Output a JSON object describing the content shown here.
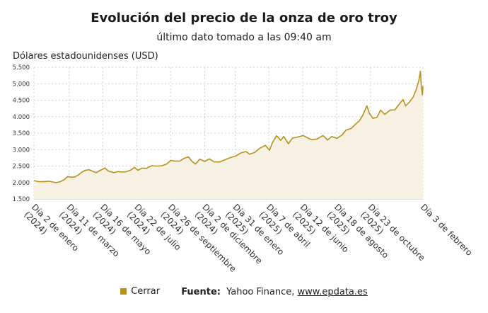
{
  "chart_data": {
    "type": "area",
    "title": "Evolución del precio de la onza de oro troy",
    "subtitle": "último dato tomado a las 09:40 am",
    "ylabel": "Dólares estadounidenses (USD)",
    "xlabel": "",
    "ylim": [
      1500,
      5500
    ],
    "yticks": [
      "1.500",
      "2.000",
      "2.500",
      "3.000",
      "3.500",
      "4.000",
      "4.500",
      "5.000",
      "5.500"
    ],
    "ytick_values": [
      1500,
      2000,
      2500,
      3000,
      3500,
      4000,
      4500,
      5000,
      5500
    ],
    "xlim": [
      "2024-01-02",
      "2026-02-03"
    ],
    "xticks": [
      {
        "date": "2024-01-02",
        "label": "Día 2 de enero (2024)"
      },
      {
        "date": "2024-03-11",
        "label": "Día 11 de marzo (2024)"
      },
      {
        "date": "2024-05-16",
        "label": "Día 16 de mayo (2024)"
      },
      {
        "date": "2024-07-22",
        "label": "Día 22 de julio (2024)"
      },
      {
        "date": "2024-09-26",
        "label": "Día 26 de septiembre (2024)"
      },
      {
        "date": "2024-12-02",
        "label": "Día 2 de diciembre (2024)"
      },
      {
        "date": "2025-01-31",
        "label": "Día 31 de enero (2025)"
      },
      {
        "date": "2025-04-07",
        "label": "Día 7 de abril (2025)"
      },
      {
        "date": "2025-06-12",
        "label": "Día 12 de junio (2025)"
      },
      {
        "date": "2025-08-18",
        "label": "Día 18 de agosto (2025)"
      },
      {
        "date": "2025-10-23",
        "label": "Día 23 de octubre (2025)"
      },
      {
        "date": "2026-02-03",
        "label": "Día 3 de febrero"
      }
    ],
    "grid": true,
    "legend_position": "bottom",
    "line_color": "#b8901c",
    "fill_color": "#f7f1e4",
    "series": [
      {
        "name": "Cerrar",
        "points": [
          [
            "2024-01-02",
            2060
          ],
          [
            "2024-01-10",
            2030
          ],
          [
            "2024-01-20",
            2025
          ],
          [
            "2024-02-01",
            2040
          ],
          [
            "2024-02-14",
            1995
          ],
          [
            "2024-02-22",
            2025
          ],
          [
            "2024-03-01",
            2080
          ],
          [
            "2024-03-08",
            2180
          ],
          [
            "2024-03-15",
            2160
          ],
          [
            "2024-03-22",
            2170
          ],
          [
            "2024-03-29",
            2230
          ],
          [
            "2024-04-05",
            2320
          ],
          [
            "2024-04-12",
            2370
          ],
          [
            "2024-04-19",
            2390
          ],
          [
            "2024-04-26",
            2340
          ],
          [
            "2024-05-03",
            2300
          ],
          [
            "2024-05-10",
            2360
          ],
          [
            "2024-05-20",
            2440
          ],
          [
            "2024-05-27",
            2350
          ],
          [
            "2024-06-07",
            2300
          ],
          [
            "2024-06-14",
            2330
          ],
          [
            "2024-06-24",
            2320
          ],
          [
            "2024-07-01",
            2330
          ],
          [
            "2024-07-10",
            2380
          ],
          [
            "2024-07-17",
            2460
          ],
          [
            "2024-07-24",
            2370
          ],
          [
            "2024-08-01",
            2440
          ],
          [
            "2024-08-09",
            2430
          ],
          [
            "2024-08-20",
            2510
          ],
          [
            "2024-08-30",
            2500
          ],
          [
            "2024-09-09",
            2510
          ],
          [
            "2024-09-18",
            2560
          ],
          [
            "2024-09-26",
            2670
          ],
          [
            "2024-10-04",
            2650
          ],
          [
            "2024-10-14",
            2650
          ],
          [
            "2024-10-22",
            2730
          ],
          [
            "2024-10-31",
            2780
          ],
          [
            "2024-11-06",
            2660
          ],
          [
            "2024-11-14",
            2560
          ],
          [
            "2024-11-22",
            2710
          ],
          [
            "2024-12-02",
            2640
          ],
          [
            "2024-12-11",
            2720
          ],
          [
            "2024-12-20",
            2630
          ],
          [
            "2024-12-31",
            2625
          ],
          [
            "2025-01-10",
            2690
          ],
          [
            "2025-01-22",
            2760
          ],
          [
            "2025-01-31",
            2800
          ],
          [
            "2025-02-11",
            2900
          ],
          [
            "2025-02-21",
            2940
          ],
          [
            "2025-02-28",
            2860
          ],
          [
            "2025-03-10",
            2915
          ],
          [
            "2025-03-20",
            3040
          ],
          [
            "2025-03-31",
            3130
          ],
          [
            "2025-04-08",
            2980
          ],
          [
            "2025-04-14",
            3220
          ],
          [
            "2025-04-22",
            3420
          ],
          [
            "2025-04-30",
            3280
          ],
          [
            "2025-05-06",
            3400
          ],
          [
            "2025-05-15",
            3180
          ],
          [
            "2025-05-23",
            3350
          ],
          [
            "2025-06-02",
            3380
          ],
          [
            "2025-06-13",
            3430
          ],
          [
            "2025-06-20",
            3370
          ],
          [
            "2025-06-30",
            3300
          ],
          [
            "2025-07-10",
            3320
          ],
          [
            "2025-07-22",
            3430
          ],
          [
            "2025-07-31",
            3290
          ],
          [
            "2025-08-08",
            3400
          ],
          [
            "2025-08-18",
            3340
          ],
          [
            "2025-08-29",
            3450
          ],
          [
            "2025-09-05",
            3590
          ],
          [
            "2025-09-15",
            3640
          ],
          [
            "2025-09-23",
            3760
          ],
          [
            "2025-10-01",
            3870
          ],
          [
            "2025-10-08",
            4040
          ],
          [
            "2025-10-16",
            4330
          ],
          [
            "2025-10-21",
            4100
          ],
          [
            "2025-10-28",
            3950
          ],
          [
            "2025-11-05",
            3980
          ],
          [
            "2025-11-12",
            4200
          ],
          [
            "2025-11-20",
            4070
          ],
          [
            "2025-12-01",
            4200
          ],
          [
            "2025-12-10",
            4210
          ],
          [
            "2025-12-22",
            4450
          ],
          [
            "2025-12-26",
            4520
          ],
          [
            "2025-12-31",
            4330
          ],
          [
            "2026-01-08",
            4450
          ],
          [
            "2026-01-15",
            4600
          ],
          [
            "2026-01-21",
            4830
          ],
          [
            "2026-01-26",
            5100
          ],
          [
            "2026-01-29",
            5380
          ],
          [
            "2026-01-31",
            4900
          ],
          [
            "2026-02-02",
            4660
          ],
          [
            "2026-02-03",
            4930
          ]
        ]
      }
    ]
  },
  "legend": {
    "label": "Cerrar"
  },
  "footer": {
    "source_label": "Fuente:",
    "source_text": "Yahoo Finance,",
    "source_link": "www.epdata.es"
  }
}
